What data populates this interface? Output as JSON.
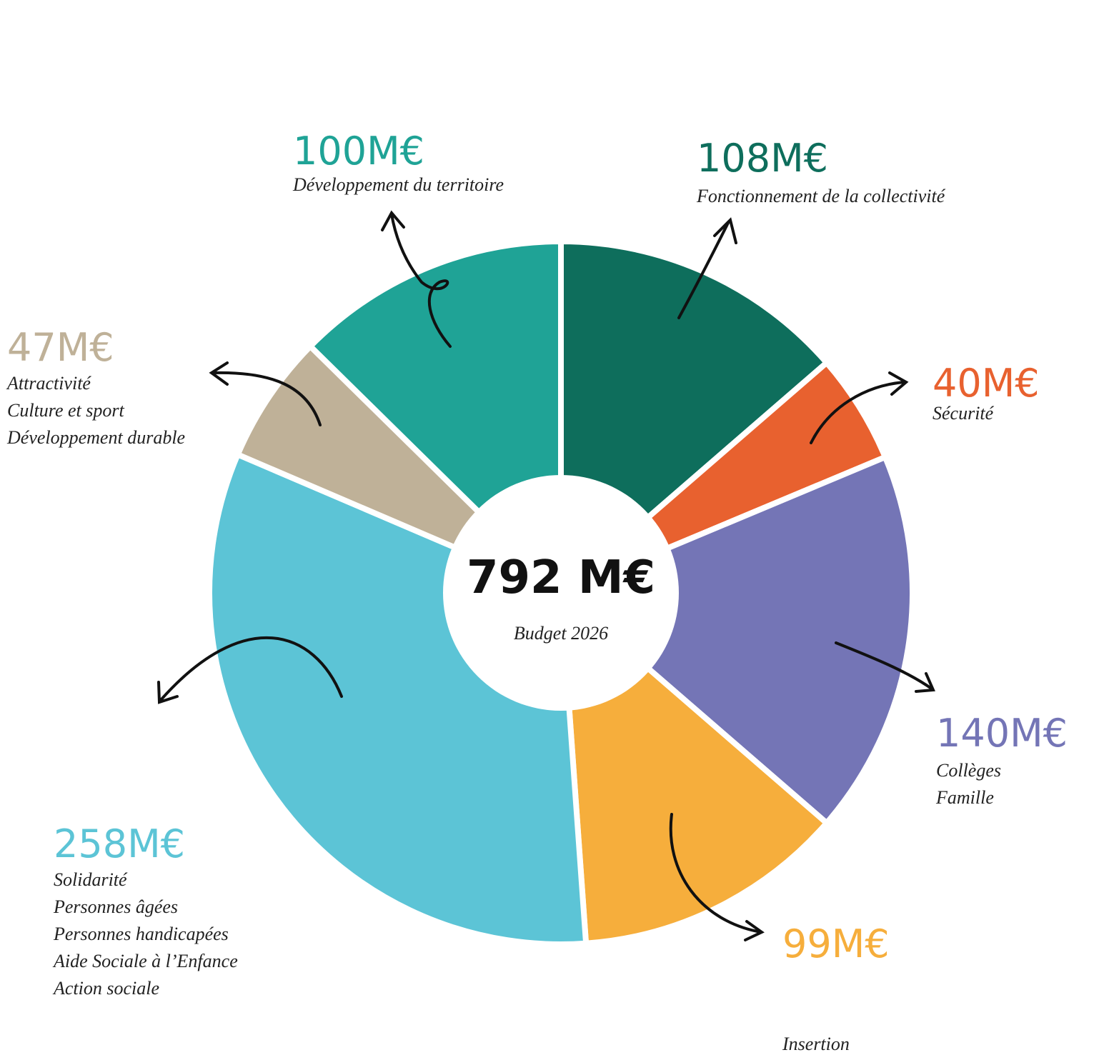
{
  "chart_data": {
    "type": "pie",
    "center_label": "792 M€",
    "center_sublabel": "Budget 2026",
    "categories": [
      [
        "Fonctionnement de la collectivité"
      ],
      [
        "Sécurité"
      ],
      [
        "Collèges",
        "Famille"
      ],
      [
        "Insertion"
      ],
      [
        "Solidarité",
        "Personnes âgées",
        "Personnes handicapées",
        "Aide Sociale à l’Enfance",
        "Action sociale"
      ],
      [
        "Attractivité",
        "Culture et sport",
        "Développement durable"
      ],
      [
        "Développement du territoire"
      ]
    ],
    "values": [
      108,
      40,
      140,
      99,
      258,
      47,
      100
    ],
    "value_labels": [
      "108M€",
      "40M€",
      "140M€",
      "99M€",
      "258M€",
      "47M€",
      "100M€"
    ],
    "colors": [
      "#0e6e5c",
      "#e8612f",
      "#7475b6",
      "#f6ae3c",
      "#5cc4d6",
      "#bfb198",
      "#1fa396"
    ]
  }
}
